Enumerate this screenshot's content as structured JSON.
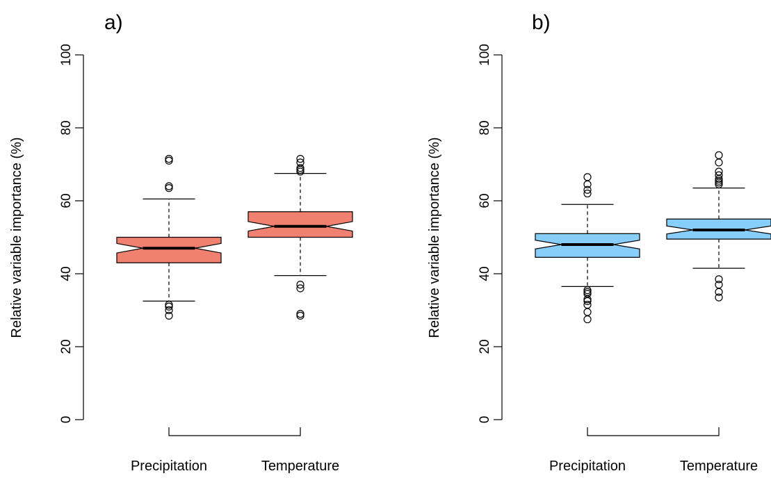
{
  "chart_data": [
    {
      "type": "boxplot",
      "panel_label": "a)",
      "ylabel": "Relative variable importance (%)",
      "xlabel": "",
      "ylim": [
        0,
        100
      ],
      "yticks": [
        0,
        20,
        40,
        60,
        80,
        100
      ],
      "categories": [
        "Precipitation",
        "Temperature"
      ],
      "notched": true,
      "fill_color": "#f08070",
      "boxes": [
        {
          "category": "Precipitation",
          "whisker_low": 32.5,
          "q1": 43,
          "median": 47,
          "q3": 50,
          "whisker_high": 60.5,
          "notch": [
            45.7,
            48.3
          ],
          "outliers": [
            71.5,
            71,
            64,
            63.5,
            31.5,
            31,
            30,
            28.5
          ]
        },
        {
          "category": "Temperature",
          "whisker_low": 39.5,
          "q1": 50,
          "median": 53,
          "q3": 57,
          "whisker_high": 67.5,
          "notch": [
            51.7,
            54.3
          ],
          "outliers": [
            71.5,
            70.5,
            69,
            68.5,
            68,
            37,
            36,
            29,
            28.5
          ]
        }
      ]
    },
    {
      "type": "boxplot",
      "panel_label": "b)",
      "ylabel": "Relative variable importance (%)",
      "xlabel": "",
      "ylim": [
        0,
        100
      ],
      "yticks": [
        0,
        20,
        40,
        60,
        80,
        100
      ],
      "categories": [
        "Precipitation",
        "Temperature"
      ],
      "notched": true,
      "fill_color": "#87cefa",
      "boxes": [
        {
          "category": "Precipitation",
          "whisker_low": 36.5,
          "q1": 44.5,
          "median": 48,
          "q3": 51,
          "whisker_high": 59,
          "notch": [
            46.8,
            49.2
          ],
          "outliers": [
            66.5,
            64.5,
            63,
            62,
            35.5,
            35,
            34.5,
            33,
            32.5,
            31.5,
            29.5,
            27.5
          ]
        },
        {
          "category": "Temperature",
          "whisker_low": 41.5,
          "q1": 49.5,
          "median": 52,
          "q3": 55,
          "whisker_high": 63.5,
          "notch": [
            50.9,
            53.1
          ],
          "outliers": [
            72.5,
            70.5,
            68,
            67,
            66,
            65.5,
            65,
            64.5,
            38.5,
            37,
            35,
            33.5
          ]
        }
      ]
    }
  ]
}
